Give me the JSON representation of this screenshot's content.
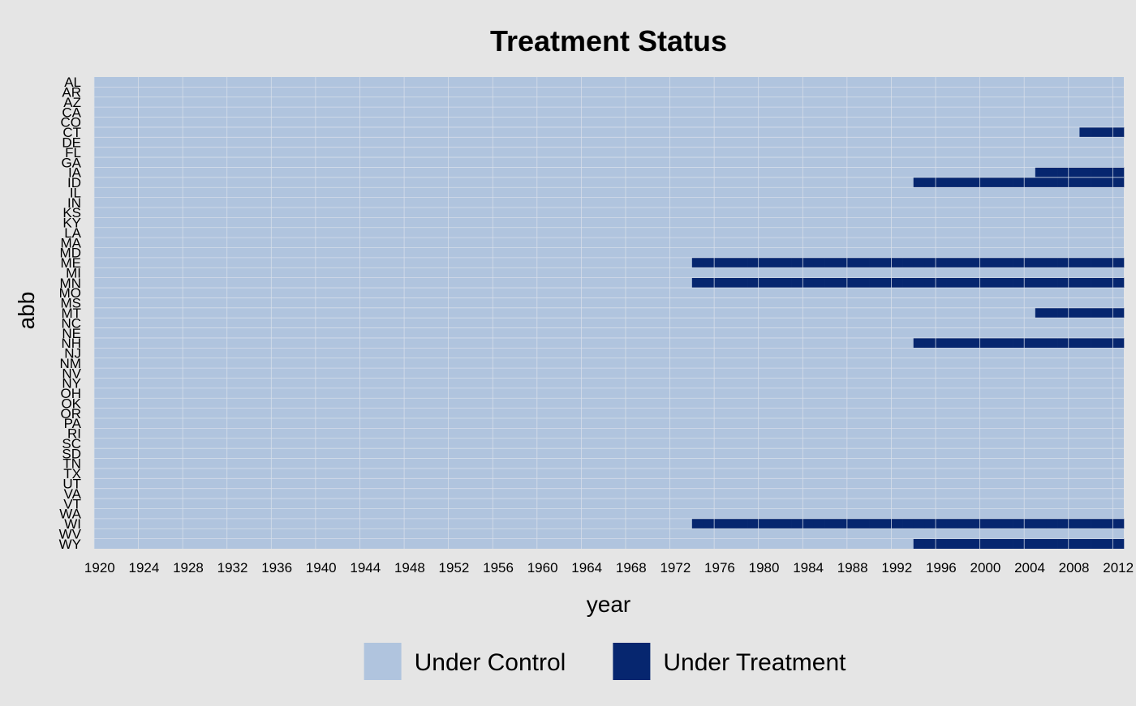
{
  "chart_data": {
    "type": "heatmap",
    "title": "Treatment Status",
    "xlabel": "year",
    "ylabel": "abb",
    "x_start": 1920,
    "x_end": 2012,
    "x_ticks": [
      "1920",
      "1924",
      "1928",
      "1932",
      "1936",
      "1940",
      "1944",
      "1948",
      "1952",
      "1956",
      "1960",
      "1964",
      "1968",
      "1972",
      "1976",
      "1980",
      "1984",
      "1988",
      "1992",
      "1996",
      "2000",
      "2004",
      "2008",
      "2012"
    ],
    "y_categories": [
      "AL",
      "AR",
      "AZ",
      "CA",
      "CO",
      "CT",
      "DE",
      "FL",
      "GA",
      "IA",
      "ID",
      "IL",
      "IN",
      "KS",
      "KY",
      "LA",
      "MA",
      "MD",
      "ME",
      "MI",
      "MN",
      "MO",
      "MS",
      "MT",
      "NC",
      "NE",
      "NH",
      "NJ",
      "NM",
      "NV",
      "NY",
      "OH",
      "OK",
      "OR",
      "PA",
      "RI",
      "SC",
      "SD",
      "TN",
      "TX",
      "UT",
      "VA",
      "VT",
      "WA",
      "WI",
      "WV",
      "WY"
    ],
    "treated_periods": [
      {
        "abb": "CT",
        "from": 2009,
        "to": 2012
      },
      {
        "abb": "IA",
        "from": 2005,
        "to": 2012
      },
      {
        "abb": "ID",
        "from": 1994,
        "to": 2012
      },
      {
        "abb": "ME",
        "from": 1974,
        "to": 2012
      },
      {
        "abb": "MN",
        "from": 1974,
        "to": 2012
      },
      {
        "abb": "MT",
        "from": 2005,
        "to": 2012
      },
      {
        "abb": "NH",
        "from": 1994,
        "to": 2012
      },
      {
        "abb": "WI",
        "from": 1974,
        "to": 2012
      },
      {
        "abb": "WY",
        "from": 1994,
        "to": 2012
      }
    ],
    "legend": {
      "position": "bottom",
      "items": [
        {
          "label": "Under Control",
          "color": "#b0c4de"
        },
        {
          "label": "Under Treatment",
          "color": "#06266f"
        }
      ]
    },
    "colors": {
      "control": "#b0c4de",
      "treatment": "#06266f",
      "background": "#e5e5e5",
      "grid": "#d9e0ea"
    }
  }
}
